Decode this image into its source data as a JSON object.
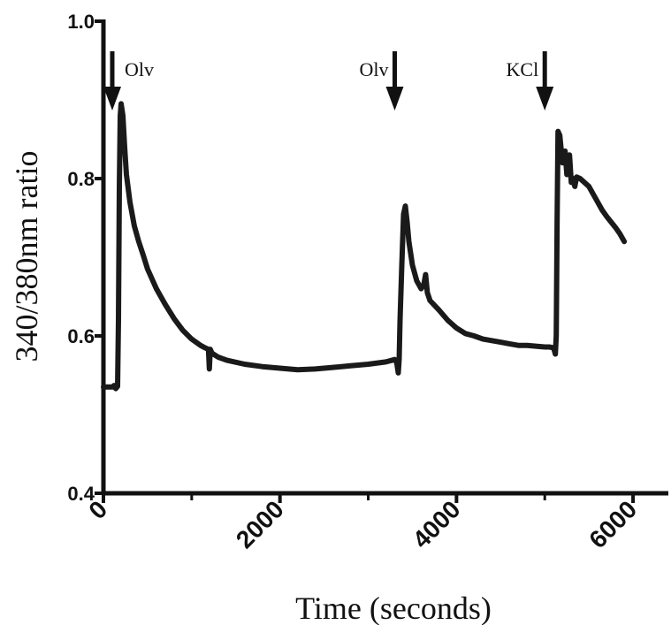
{
  "chart_data": {
    "type": "line",
    "xlabel": "Time (seconds)",
    "ylabel": "340/380nm ratio",
    "xlim": [
      0,
      6400
    ],
    "ylim": [
      0.4,
      1.0
    ],
    "x_ticks": [
      0,
      2000,
      4000,
      6000
    ],
    "x_tick_labels": [
      "0",
      "2000",
      "4000",
      "6000"
    ],
    "x_minor_ticks": [
      1000,
      3000,
      5000
    ],
    "y_ticks": [
      0.4,
      0.6,
      0.8,
      1.0
    ],
    "y_tick_labels": [
      "0.4",
      "0.6",
      "0.8",
      "1.0"
    ],
    "grid": false,
    "line_color": "#1a1a1a",
    "series": [
      {
        "x": [
          0,
          100,
          120,
          140,
          160,
          170,
          180,
          190,
          200,
          220,
          240,
          260,
          300,
          350,
          400,
          450,
          500,
          600,
          700,
          800,
          900,
          1000,
          1100,
          1150,
          1190,
          1200,
          1210,
          1230,
          1300,
          1400,
          1600,
          1800,
          2000,
          2200,
          2400,
          2600,
          2800,
          3000,
          3200,
          3300,
          3320,
          3340,
          3350,
          3360,
          3380,
          3400,
          3420,
          3440,
          3460,
          3500,
          3550,
          3600,
          3630,
          3650,
          3670,
          3700,
          3800,
          3900,
          4000,
          4100,
          4200,
          4300,
          4400,
          4500,
          4600,
          4700,
          4800,
          4900,
          5000,
          5050,
          5100,
          5120,
          5130,
          5140,
          5150,
          5170,
          5200,
          5230,
          5250,
          5280,
          5300,
          5320,
          5340,
          5360,
          5400,
          5450,
          5500,
          5550,
          5600,
          5650,
          5700,
          5750,
          5800,
          5850,
          5900
        ],
        "y": [
          0.535,
          0.535,
          0.537,
          0.533,
          0.536,
          0.62,
          0.79,
          0.88,
          0.895,
          0.88,
          0.84,
          0.805,
          0.77,
          0.74,
          0.72,
          0.703,
          0.685,
          0.66,
          0.64,
          0.622,
          0.607,
          0.596,
          0.588,
          0.585,
          0.583,
          0.558,
          0.583,
          0.578,
          0.573,
          0.569,
          0.564,
          0.561,
          0.559,
          0.557,
          0.558,
          0.56,
          0.562,
          0.564,
          0.567,
          0.57,
          0.568,
          0.553,
          0.57,
          0.62,
          0.69,
          0.755,
          0.765,
          0.745,
          0.72,
          0.69,
          0.67,
          0.66,
          0.665,
          0.678,
          0.655,
          0.645,
          0.633,
          0.62,
          0.61,
          0.603,
          0.6,
          0.596,
          0.594,
          0.592,
          0.59,
          0.588,
          0.588,
          0.587,
          0.586,
          0.586,
          0.585,
          0.577,
          0.6,
          0.75,
          0.86,
          0.855,
          0.82,
          0.835,
          0.805,
          0.83,
          0.795,
          0.8,
          0.79,
          0.802,
          0.8,
          0.795,
          0.79,
          0.78,
          0.77,
          0.76,
          0.752,
          0.745,
          0.738,
          0.73,
          0.72
        ]
      }
    ],
    "annotations": [
      {
        "text": "Olv",
        "x": 100,
        "side": "right"
      },
      {
        "text": "Olv",
        "x": 3300,
        "side": "left"
      },
      {
        "text": "KCl",
        "x": 5000,
        "side": "left"
      }
    ]
  }
}
